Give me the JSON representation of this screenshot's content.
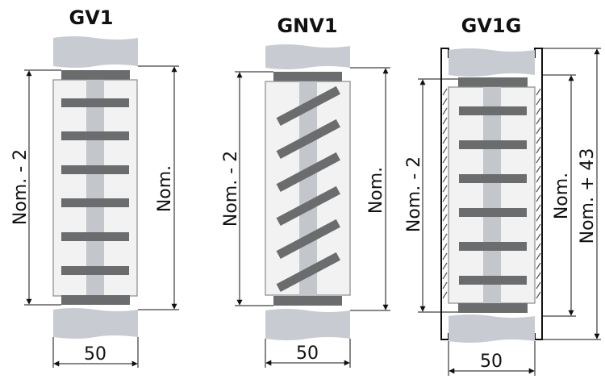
{
  "diagrams": [
    {
      "title": "GV1",
      "inner_label": "Nom. - 2",
      "outer_label": "Nom.",
      "width_label": "50"
    },
    {
      "title": "GNV1",
      "inner_label": "Nom. - 2",
      "outer_label": "Nom.",
      "width_label": "50"
    },
    {
      "title": "GV1G",
      "inner_label": "Nom. - 2",
      "outer_label": "Nom.",
      "extra_label": "Nom. + 43",
      "width_label": "50"
    }
  ],
  "colors": {
    "grey_block": "#c8ccd2",
    "dark_bar": "#6a6c6e",
    "channel": "#c3c6cb",
    "panel": "#f2f2f2",
    "panel_stroke": "#8a8a8a",
    "line": "#111111"
  }
}
